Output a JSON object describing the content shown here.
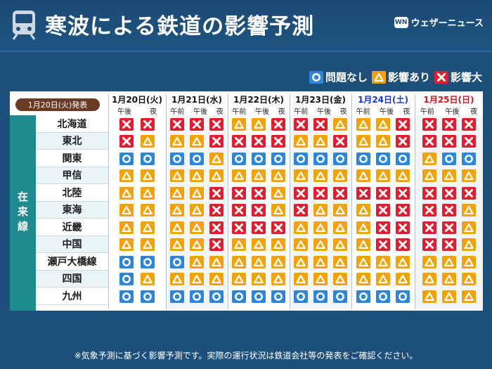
{
  "header": {
    "title": "寒波による鉄道の影響予測",
    "brand": "ウェザーニュース",
    "brand_mark": "WN"
  },
  "legend": [
    {
      "kind": "o",
      "label": "問題なし"
    },
    {
      "kind": "t",
      "label": "影響あり"
    },
    {
      "kind": "x",
      "label": "影響大"
    }
  ],
  "colors": {
    "o": "#2c86dc",
    "t": "#f4a200",
    "x": "#e01e30",
    "sat": "#1a33cc",
    "sun": "#d4141e"
  },
  "issued": "1月20日(火)発表",
  "region": "在来線",
  "days": [
    {
      "label": "1月20日(火)",
      "slots": [
        "午後",
        "夜"
      ],
      "style": ""
    },
    {
      "label": "1月21日(水)",
      "slots": [
        "午前",
        "午後",
        "夜"
      ],
      "style": ""
    },
    {
      "label": "1月22日(木)",
      "slots": [
        "午前",
        "午後",
        "夜"
      ],
      "style": ""
    },
    {
      "label": "1月23日(金)",
      "slots": [
        "午前",
        "午後",
        "夜"
      ],
      "style": ""
    },
    {
      "label": "1月24日(土)",
      "slots": [
        "午前",
        "午後",
        "夜"
      ],
      "style": "sat"
    },
    {
      "label": "1月25日(日)",
      "slots": [
        "午前",
        "午後",
        "夜"
      ],
      "style": "sun"
    }
  ],
  "rows": [
    {
      "name": "北海道",
      "cells": [
        "xx",
        "xxx",
        "ttx",
        "xxt",
        "ttx",
        "xxx"
      ]
    },
    {
      "name": "東北",
      "cells": [
        "xt",
        "ttx",
        "xxx",
        "ttx",
        "ttx",
        "xxx"
      ]
    },
    {
      "name": "関東",
      "cells": [
        "oo",
        "oot",
        "ooo",
        "ooo",
        "ooo",
        "too"
      ]
    },
    {
      "name": "甲信",
      "cells": [
        "tt",
        "ttt",
        "ttt",
        "ttt",
        "ttt",
        "ttt"
      ]
    },
    {
      "name": "北陸",
      "cells": [
        "tt",
        "ttx",
        "xxt",
        "xxx",
        "xxx",
        "xxx"
      ]
    },
    {
      "name": "東海",
      "cells": [
        "tt",
        "ttx",
        "xxt",
        "xtt",
        "txx",
        "xxt"
      ]
    },
    {
      "name": "近畿",
      "cells": [
        "tt",
        "ttx",
        "xxx",
        "ttt",
        "txx",
        "xxt"
      ]
    },
    {
      "name": "中国",
      "cells": [
        "tt",
        "ttx",
        "ttt",
        "ttt",
        "txx",
        "xxt"
      ]
    },
    {
      "name": "瀬戸大橋線",
      "cells": [
        "oo",
        "ott",
        "ttt",
        "ttt",
        "ttt",
        "ttt"
      ]
    },
    {
      "name": "四国",
      "cells": [
        "ot",
        "ttt",
        "ttt",
        "ttt",
        "ttt",
        "ttt"
      ]
    },
    {
      "name": "九州",
      "cells": [
        "oo",
        "ooo",
        "ooo",
        "ooo",
        "ooo",
        "ttt"
      ]
    }
  ],
  "footnote": "※気象予測に基づく影響予測です。実際の運行状況は鉄道会社等の発表をご確認ください。"
}
